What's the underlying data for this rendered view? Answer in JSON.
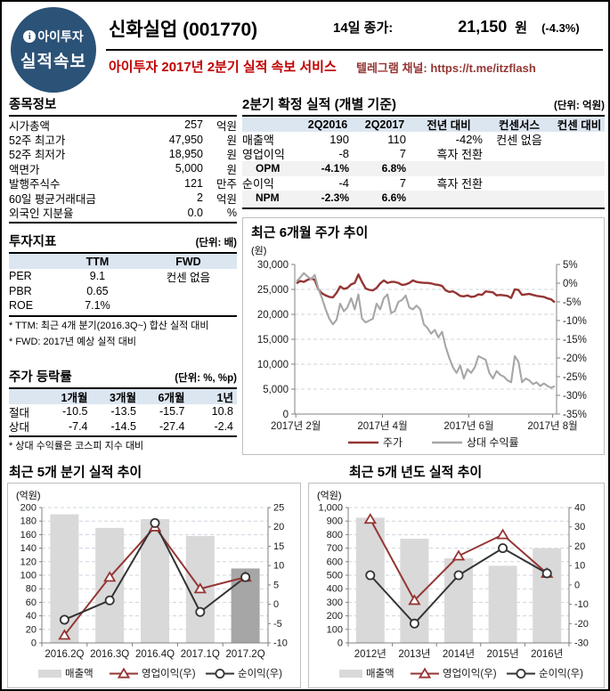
{
  "header": {
    "logo_icon": "i",
    "logo_line1": "아이투자",
    "logo_line2": "실적속보",
    "title": "신화실업 (001770)",
    "close_label": "14일 종가:",
    "close_value": "21,150",
    "close_unit": "원",
    "close_change": "(-4.3%)",
    "service_line": "아이투자 2017년 2분기 실적 속보 서비스",
    "telegram_line": "텔레그램 채널: https://t.me/itzflash"
  },
  "colors": {
    "logo_bg": "#2B5277",
    "service_red": "#C00000",
    "telegram_maroon": "#943634",
    "table_header_bg": "#DCE6F1",
    "ratio_row_bg": "#F2F2F2",
    "price_line": "#943634",
    "relative_line": "#A6A6A6",
    "bar_light": "#D9D9D9",
    "bar_dark": "#A6A6A6",
    "net_line": "#333333",
    "grid": "#CDD4DE",
    "axis": "#808080"
  },
  "stock_info": {
    "title": "종목정보",
    "rows": [
      {
        "label": "시가총액",
        "value": "257",
        "unit": "억원"
      },
      {
        "label": "52주 최고가",
        "value": "47,950",
        "unit": "원"
      },
      {
        "label": "52주 최저가",
        "value": "18,950",
        "unit": "원"
      },
      {
        "label": "액면가",
        "value": "5,000",
        "unit": "원"
      },
      {
        "label": "발행주식수",
        "value": "121",
        "unit": "만주"
      },
      {
        "label": "60일 평균거래대금",
        "value": "2",
        "unit": "억원"
      },
      {
        "label": "외국인 지분율",
        "value": "0.0",
        "unit": "%"
      }
    ]
  },
  "valuation": {
    "title": "투자지표",
    "unit": "(단위: 배)",
    "col1": "TTM",
    "col2": "FWD",
    "rows": [
      {
        "label": "PER",
        "ttm": "9.1",
        "fwd": "컨센 없음"
      },
      {
        "label": "PBR",
        "ttm": "0.65",
        "fwd": ""
      },
      {
        "label": "ROE",
        "ttm": "7.1%",
        "fwd": ""
      }
    ],
    "notes": [
      "* TTM: 최근 4개 분기(2016.3Q~) 합산 실적 대비",
      "* FWD: 2017년 예상 실적 대비"
    ]
  },
  "price_change": {
    "title": "주가 등락률",
    "unit": "(단위: %, %p)",
    "cols": [
      "1개월",
      "3개월",
      "6개월",
      "1년"
    ],
    "rows": [
      {
        "label": "절대",
        "values": [
          "-10.5",
          "-13.5",
          "-15.7",
          "10.8"
        ]
      },
      {
        "label": "상대",
        "values": [
          "-7.4",
          "-14.5",
          "-27.4",
          "-2.4"
        ]
      }
    ],
    "note": "* 상대 수익률은 코스피 지수 대비"
  },
  "results": {
    "title": "2분기 확정 실적 (개별 기준)",
    "unit": "(단위: 억원)",
    "cols": [
      "",
      "2Q2016",
      "2Q2017",
      "전년 대비",
      "컨센서스",
      "컨센 대비"
    ],
    "rows": [
      {
        "label": "매출액",
        "values": [
          "190",
          "110",
          "-42%",
          "컨센 없음",
          ""
        ],
        "shaded": false
      },
      {
        "label": "영업이익",
        "values": [
          "-8",
          "7",
          "흑자 전환",
          "",
          ""
        ],
        "shaded": false
      },
      {
        "label": "OPM",
        "values": [
          "-4.1%",
          "6.8%",
          "",
          "",
          ""
        ],
        "shaded": true
      },
      {
        "label": "순이익",
        "values": [
          "-4",
          "7",
          "흑자 전환",
          "",
          ""
        ],
        "shaded": false
      },
      {
        "label": "NPM",
        "values": [
          "-2.3%",
          "6.6%",
          "",
          "",
          ""
        ],
        "shaded": true
      }
    ]
  },
  "chart_data": [
    {
      "id": "price6m",
      "type": "line",
      "title": "최근 6개월 주가 추이",
      "ylabel_left": "(원)",
      "left_axis": {
        "min": 0,
        "max": 30000,
        "step": 5000
      },
      "right_axis": {
        "min": -35,
        "max": 5,
        "step": 5,
        "suffix": "%"
      },
      "x_ticks": [
        "2017년 2월",
        "2017년 4월",
        "2017년 6월",
        "2017년 8월"
      ],
      "legend": [
        "주가",
        "상대 수익률"
      ],
      "series": [
        {
          "name": "주가",
          "axis": "left",
          "color": "#943634",
          "values": [
            26200,
            26700,
            26500,
            26900,
            27200,
            26900,
            25000,
            24200,
            23800,
            23500,
            23400,
            24300,
            25600,
            25100,
            25300,
            26000,
            26300,
            28000,
            26500,
            25200,
            24900,
            24800,
            25300,
            26200,
            26800,
            26300,
            26500,
            26500,
            26300,
            25900,
            26000,
            26300,
            26800,
            26500,
            26400,
            26300,
            26300,
            26200,
            26000,
            25900,
            25700,
            24800,
            24500,
            24600,
            24200,
            23700,
            23600,
            23800,
            23500,
            23600,
            24000,
            23900,
            24600,
            24500,
            24400,
            23800,
            23900,
            23800,
            23700,
            23300,
            25000,
            24900,
            23900,
            24000,
            24100,
            23900,
            23700,
            23600,
            23500,
            23200,
            23000,
            22400
          ]
        },
        {
          "name": "상대 수익률",
          "axis": "right",
          "color": "#A6A6A6",
          "values": [
            0.5,
            1.5,
            2.7,
            1.8,
            1.0,
            2.2,
            -1.5,
            -4.0,
            -7.0,
            -9.5,
            -11.0,
            -9.8,
            -5.5,
            -7.5,
            -6.5,
            -4.0,
            -7.0,
            -3.0,
            -9.5,
            -10.5,
            -10.0,
            -9.5,
            -5.5,
            -7.0,
            -4.0,
            -3.0,
            -8.0,
            -7.5,
            -5.0,
            -4.5,
            -3.3,
            -6.5,
            -7.0,
            -6.0,
            -7.0,
            -11.0,
            -12.0,
            -13.5,
            -12.5,
            -14.5,
            -13.0,
            -17.0,
            -20.0,
            -22.5,
            -24.0,
            -22.0,
            -25.5,
            -23.0,
            -24.0,
            -22.5,
            -19.5,
            -20.0,
            -20.5,
            -24.0,
            -25.5,
            -23.5,
            -24.5,
            -25.0,
            -26.0,
            -26.5,
            -19.5,
            -21.0,
            -26.5,
            -25.5,
            -26.0,
            -27.0,
            -26.5,
            -27.5,
            -26.8,
            -27.5,
            -28.0,
            -27.5
          ]
        }
      ]
    },
    {
      "id": "quarterly",
      "type": "combo",
      "title": "최근 5개 분기 실적 추이",
      "ylabel_left": "(억원)",
      "categories": [
        "2016.2Q",
        "2016.3Q",
        "2016.4Q",
        "2017.1Q",
        "2017.2Q"
      ],
      "left_axis": {
        "min": 0,
        "max": 200,
        "step": 20
      },
      "right_axis": {
        "min": -10,
        "max": 25,
        "step": 5
      },
      "bars": {
        "name": "매출액",
        "values": [
          190,
          170,
          183,
          158,
          110
        ],
        "colors": [
          "#D9D9D9",
          "#D9D9D9",
          "#D9D9D9",
          "#D9D9D9",
          "#A6A6A6"
        ]
      },
      "lines": [
        {
          "name": "영업이익(우)",
          "marker": "triangle",
          "color": "#943634",
          "values": [
            -8,
            7,
            20,
            4,
            7
          ]
        },
        {
          "name": "순이익(우)",
          "marker": "circle",
          "color": "#333333",
          "values": [
            -4,
            1,
            21,
            -2,
            7
          ]
        }
      ],
      "legend": [
        "매출액",
        "영업이익(우)",
        "순이익(우)"
      ]
    },
    {
      "id": "yearly",
      "type": "combo",
      "title": "최근 5개 년도 실적 추이",
      "ylabel_left": "(억원)",
      "categories": [
        "2012년",
        "2013년",
        "2014년",
        "2015년",
        "2016년"
      ],
      "left_axis": {
        "min": 0,
        "max": 1000,
        "step": 100
      },
      "right_axis": {
        "min": -30,
        "max": 40,
        "step": 10
      },
      "bars": {
        "name": "매출액",
        "values": [
          925,
          770,
          625,
          570,
          700
        ],
        "colors": [
          "#D9D9D9",
          "#D9D9D9",
          "#D9D9D9",
          "#D9D9D9",
          "#D9D9D9"
        ]
      },
      "lines": [
        {
          "name": "영업이익(우)",
          "marker": "triangle",
          "color": "#943634",
          "values": [
            34,
            -8,
            15,
            26,
            6
          ]
        },
        {
          "name": "순이익(우)",
          "marker": "circle",
          "color": "#333333",
          "values": [
            5,
            -20,
            5,
            19,
            6
          ]
        }
      ],
      "legend": [
        "매출액",
        "영업이익(우)",
        "순이익(우)"
      ]
    }
  ]
}
